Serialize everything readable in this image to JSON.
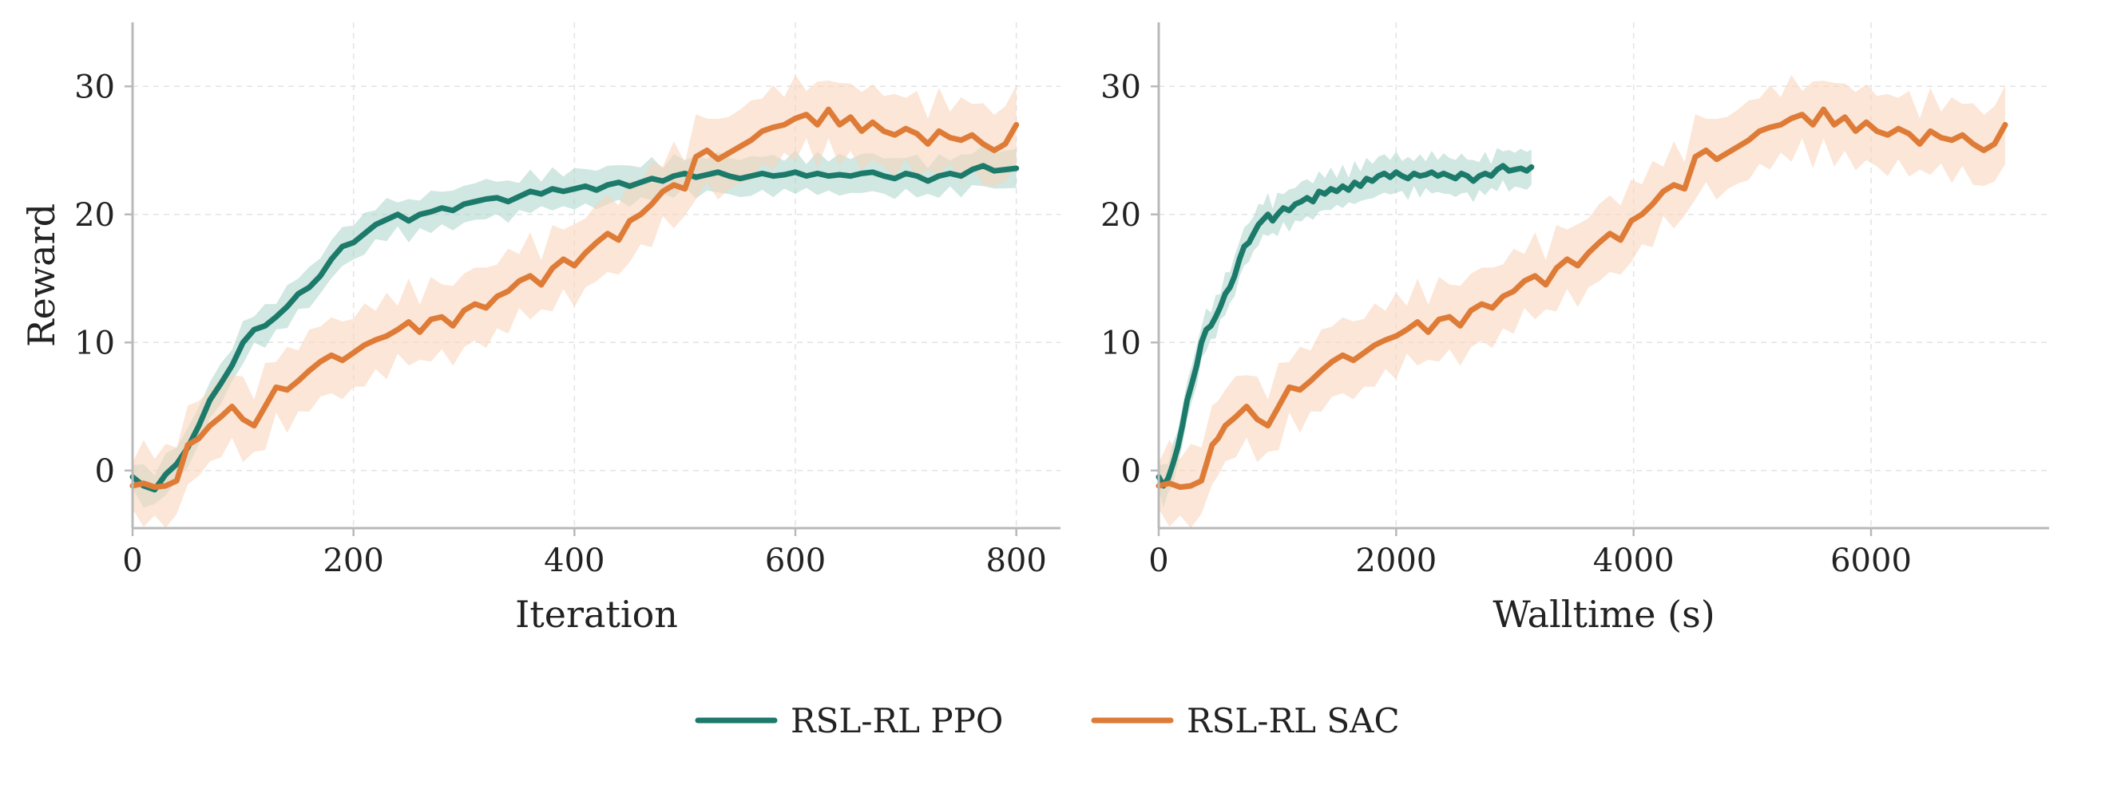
{
  "figure": {
    "legend": [
      {
        "label": "RSL-RL PPO",
        "color": "#1c7a6b"
      },
      {
        "label": "RSL-RL SAC",
        "color": "#de7b37"
      }
    ]
  },
  "colors": {
    "ppo": "#1c7a6b",
    "sac": "#de7b37",
    "ppo_band": "#a9d3cb",
    "sac_band": "#f8d5bd",
    "grid": "#e3e3e3",
    "axis": "#b9b9b9"
  },
  "chart_data": [
    {
      "type": "line",
      "xlabel": "Iteration",
      "ylabel": "Reward",
      "xlim": [
        0,
        840
      ],
      "ylim": [
        -4.5,
        35
      ],
      "xticks": [
        0,
        200,
        400,
        600,
        800
      ],
      "yticks": [
        0,
        10,
        20,
        30
      ],
      "grid": true,
      "series": [
        {
          "name": "RSL-RL PPO",
          "x": [
            0,
            10,
            20,
            30,
            40,
            50,
            60,
            70,
            80,
            90,
            100,
            110,
            120,
            130,
            140,
            150,
            160,
            170,
            180,
            190,
            200,
            210,
            220,
            230,
            240,
            250,
            260,
            270,
            280,
            290,
            300,
            310,
            320,
            330,
            340,
            350,
            360,
            370,
            380,
            390,
            400,
            410,
            420,
            430,
            440,
            450,
            460,
            470,
            480,
            490,
            500,
            510,
            520,
            530,
            540,
            550,
            560,
            570,
            580,
            590,
            600,
            610,
            620,
            630,
            640,
            650,
            660,
            670,
            680,
            690,
            700,
            710,
            720,
            730,
            740,
            750,
            760,
            770,
            780,
            790,
            800
          ],
          "y": [
            -0.5,
            -1.2,
            -1.5,
            -0.3,
            0.5,
            1.8,
            3.5,
            5.5,
            6.8,
            8.2,
            10.0,
            11.0,
            11.3,
            12.0,
            12.8,
            13.8,
            14.3,
            15.2,
            16.5,
            17.5,
            17.8,
            18.5,
            19.2,
            19.6,
            20.0,
            19.5,
            20.0,
            20.2,
            20.5,
            20.3,
            20.8,
            21.0,
            21.2,
            21.3,
            21.0,
            21.4,
            21.8,
            21.6,
            22.0,
            21.8,
            22.0,
            22.2,
            21.9,
            22.3,
            22.5,
            22.2,
            22.5,
            22.8,
            22.6,
            23.0,
            23.2,
            22.9,
            23.1,
            23.3,
            23.0,
            22.8,
            23.0,
            23.2,
            23.0,
            23.1,
            23.3,
            23.0,
            23.2,
            23.0,
            23.1,
            23.0,
            23.2,
            23.3,
            23.0,
            22.8,
            23.2,
            23.0,
            22.6,
            23.0,
            23.2,
            23.0,
            23.5,
            23.8,
            23.4,
            23.5,
            23.6
          ]
        },
        {
          "name": "RSL-RL SAC",
          "x": [
            0,
            10,
            20,
            30,
            40,
            50,
            60,
            70,
            80,
            90,
            100,
            110,
            120,
            130,
            140,
            150,
            160,
            170,
            180,
            190,
            200,
            210,
            220,
            230,
            240,
            250,
            260,
            270,
            280,
            290,
            300,
            310,
            320,
            330,
            340,
            350,
            360,
            370,
            380,
            390,
            400,
            410,
            420,
            430,
            440,
            450,
            460,
            470,
            480,
            490,
            500,
            510,
            520,
            530,
            540,
            550,
            560,
            570,
            580,
            590,
            600,
            610,
            620,
            630,
            640,
            650,
            660,
            670,
            680,
            690,
            700,
            710,
            720,
            730,
            740,
            750,
            760,
            770,
            780,
            790,
            800
          ],
          "y": [
            -1.2,
            -1.0,
            -1.3,
            -1.2,
            -0.8,
            2.0,
            2.5,
            3.5,
            4.2,
            5.0,
            4.0,
            3.5,
            5.0,
            6.5,
            6.3,
            7.0,
            7.8,
            8.5,
            9.0,
            8.6,
            9.2,
            9.8,
            10.2,
            10.5,
            11.0,
            11.6,
            10.8,
            11.8,
            12.0,
            11.3,
            12.5,
            13.0,
            12.7,
            13.6,
            14.0,
            14.8,
            15.2,
            14.5,
            15.8,
            16.5,
            16.0,
            17.0,
            17.8,
            18.5,
            18.0,
            19.5,
            20.0,
            20.8,
            21.8,
            22.3,
            22.0,
            24.5,
            25.0,
            24.3,
            24.8,
            25.3,
            25.8,
            26.5,
            26.8,
            27.0,
            27.5,
            27.8,
            27.0,
            28.2,
            27.0,
            27.6,
            26.5,
            27.2,
            26.5,
            26.2,
            26.7,
            26.3,
            25.5,
            26.5,
            26.0,
            25.8,
            26.2,
            25.5,
            25.0,
            25.5,
            27.0
          ]
        }
      ]
    },
    {
      "type": "line",
      "xlabel": "Walltime (s)",
      "ylabel": "",
      "xlim": [
        0,
        7500
      ],
      "ylim": [
        -4.5,
        35
      ],
      "xticks": [
        0,
        2000,
        4000,
        6000
      ],
      "yticks": [
        0,
        10,
        20,
        30
      ],
      "grid": true,
      "series": [
        {
          "name": "RSL-RL PPO",
          "x": [
            0,
            40,
            80,
            120,
            160,
            200,
            240,
            280,
            320,
            360,
            400,
            440,
            480,
            520,
            560,
            600,
            640,
            680,
            720,
            760,
            800,
            840,
            880,
            920,
            960,
            1000,
            1050,
            1100,
            1150,
            1200,
            1250,
            1300,
            1350,
            1400,
            1450,
            1500,
            1550,
            1600,
            1650,
            1700,
            1750,
            1800,
            1850,
            1900,
            1950,
            2000,
            2050,
            2100,
            2150,
            2200,
            2250,
            2300,
            2350,
            2400,
            2450,
            2500,
            2550,
            2600,
            2650,
            2700,
            2750,
            2800,
            2850,
            2900,
            2950,
            3000,
            3050,
            3100,
            3140
          ],
          "y": [
            -0.5,
            -1.2,
            -0.6,
            0.5,
            1.8,
            3.5,
            5.5,
            6.8,
            8.2,
            10.0,
            11.0,
            11.3,
            12.0,
            12.8,
            13.8,
            14.3,
            15.2,
            16.5,
            17.5,
            17.8,
            18.5,
            19.2,
            19.6,
            20.0,
            19.5,
            20.0,
            20.5,
            20.3,
            20.8,
            21.0,
            21.3,
            21.0,
            21.8,
            21.6,
            22.0,
            21.8,
            22.2,
            21.9,
            22.5,
            22.2,
            22.8,
            22.6,
            23.0,
            23.2,
            22.9,
            23.3,
            23.0,
            22.8,
            23.2,
            23.0,
            23.1,
            23.3,
            23.0,
            23.2,
            23.0,
            22.8,
            23.2,
            23.0,
            22.6,
            23.0,
            23.2,
            23.0,
            23.5,
            23.8,
            23.4,
            23.5,
            23.6,
            23.4,
            23.7
          ]
        },
        {
          "name": "RSL-RL SAC",
          "x": [
            0,
            90,
            180,
            270,
            360,
            450,
            500,
            560,
            650,
            740,
            830,
            920,
            1010,
            1100,
            1190,
            1280,
            1370,
            1460,
            1550,
            1640,
            1730,
            1820,
            1910,
            2000,
            2090,
            2180,
            2270,
            2360,
            2450,
            2540,
            2630,
            2720,
            2810,
            2900,
            2990,
            3080,
            3170,
            3260,
            3350,
            3440,
            3530,
            3620,
            3710,
            3800,
            3890,
            3980,
            4070,
            4160,
            4250,
            4340,
            4430,
            4520,
            4610,
            4700,
            4790,
            4880,
            4970,
            5060,
            5150,
            5240,
            5330,
            5420,
            5510,
            5600,
            5690,
            5780,
            5870,
            5960,
            6050,
            6140,
            6230,
            6320,
            6410,
            6500,
            6590,
            6680,
            6770,
            6860,
            6950,
            7040,
            7130
          ],
          "y": [
            -1.2,
            -1.0,
            -1.3,
            -1.2,
            -0.8,
            2.0,
            2.5,
            3.5,
            4.2,
            5.0,
            4.0,
            3.5,
            5.0,
            6.5,
            6.3,
            7.0,
            7.8,
            8.5,
            9.0,
            8.6,
            9.2,
            9.8,
            10.2,
            10.5,
            11.0,
            11.6,
            10.8,
            11.8,
            12.0,
            11.3,
            12.5,
            13.0,
            12.7,
            13.6,
            14.0,
            14.8,
            15.2,
            14.5,
            15.8,
            16.5,
            16.0,
            17.0,
            17.8,
            18.5,
            18.0,
            19.5,
            20.0,
            20.8,
            21.8,
            22.3,
            22.0,
            24.5,
            25.0,
            24.3,
            24.8,
            25.3,
            25.8,
            26.5,
            26.8,
            27.0,
            27.5,
            27.8,
            27.0,
            28.2,
            27.0,
            27.6,
            26.5,
            27.2,
            26.5,
            26.2,
            26.7,
            26.3,
            25.5,
            26.5,
            26.0,
            25.8,
            26.2,
            25.5,
            25.0,
            25.5,
            27.0
          ]
        }
      ]
    }
  ]
}
